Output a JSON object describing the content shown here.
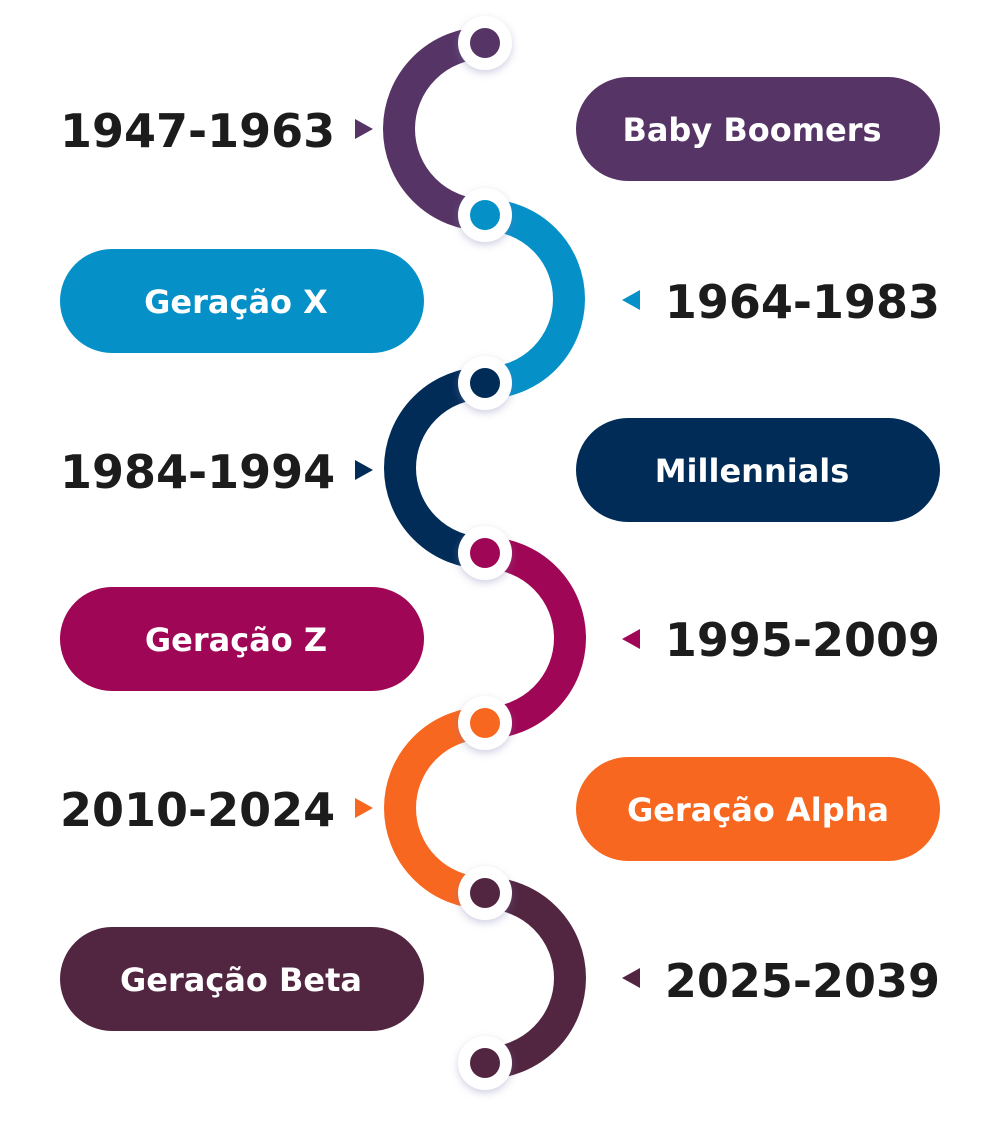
{
  "generations": [
    {
      "name": "Baby Boomers",
      "years": "1947-1963",
      "color": "#563566"
    },
    {
      "name": "Geração X",
      "years": "1964-1983",
      "color": "#0690c8"
    },
    {
      "name": "Millennials",
      "years": "1984-1994",
      "color": "#012c57"
    },
    {
      "name": "Geração Z",
      "years": "1995-2009",
      "color": "#9f0655"
    },
    {
      "name": "Geração Alpha",
      "years": "2010-2024",
      "color": "#f8671f"
    },
    {
      "name": "Geração Beta",
      "years": "2025-2039",
      "color": "#522641"
    }
  ]
}
